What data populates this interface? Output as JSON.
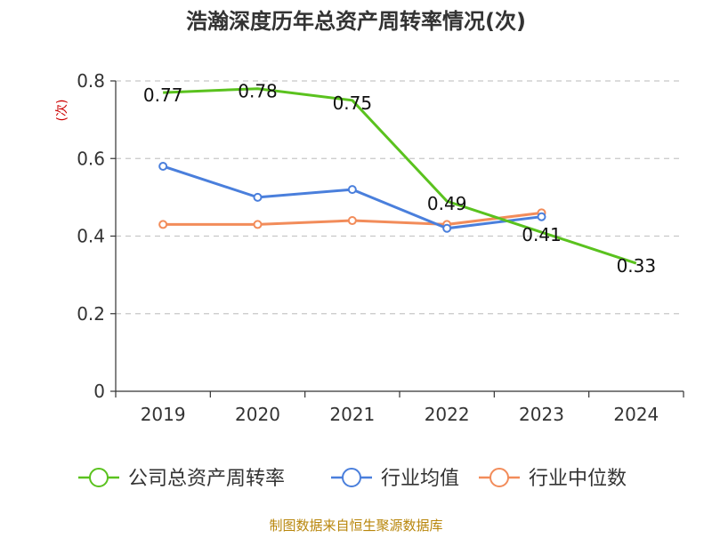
{
  "title": "浩瀚深度历年总资产周转率情况(次)",
  "source": "制图数据来自恒生聚源数据库",
  "chart_data": {
    "type": "line",
    "title": "浩瀚深度历年总资产周转率情况(次)",
    "xlabel": "",
    "ylabel": "(次)",
    "categories": [
      "2019",
      "2020",
      "2021",
      "2022",
      "2023",
      "2024"
    ],
    "ylim": [
      0,
      0.8
    ],
    "yticks": [
      "0",
      "0.2",
      "0.4",
      "0.6",
      "0.8"
    ],
    "grid": true,
    "legend_position": "bottom",
    "series": [
      {
        "name": "公司总资产周转率",
        "color": "#5ac21e",
        "values": [
          0.77,
          0.78,
          0.75,
          0.49,
          0.41,
          0.33
        ],
        "labels": [
          "0.77",
          "0.78",
          "0.75",
          "0.49",
          "0.41",
          "0.33"
        ],
        "show_labels": true,
        "markers": false
      },
      {
        "name": "行业均值",
        "color": "#4a7fdc",
        "values": [
          0.58,
          0.5,
          0.52,
          0.42,
          0.45,
          null
        ],
        "show_labels": false,
        "markers": true
      },
      {
        "name": "行业中位数",
        "color": "#f28c5a",
        "values": [
          0.43,
          0.43,
          0.44,
          0.43,
          0.46,
          null
        ],
        "show_labels": false,
        "markers": true
      }
    ]
  }
}
